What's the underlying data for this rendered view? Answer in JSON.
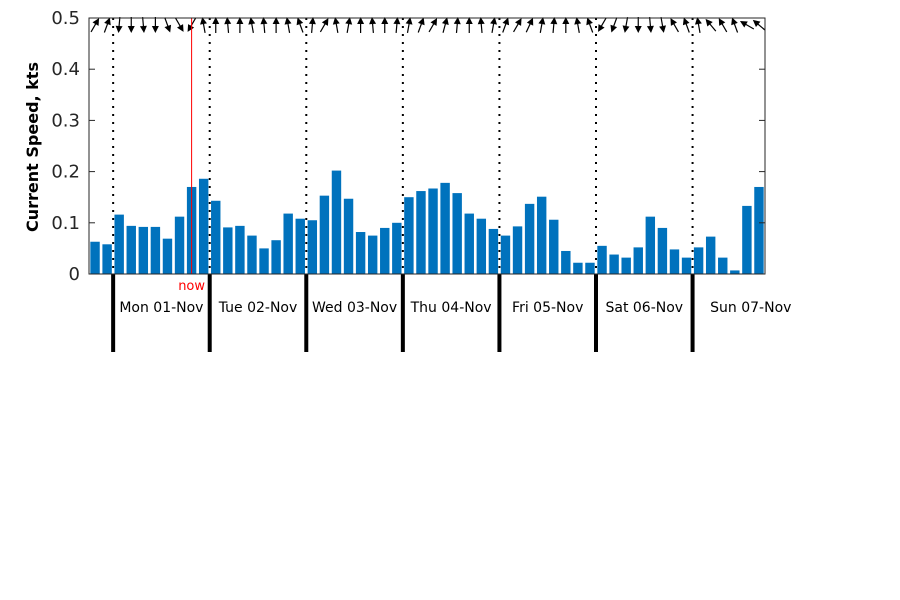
{
  "chart_data": {
    "type": "bar",
    "ylabel": "Current Speed, kts",
    "ylim": [
      0,
      0.5
    ],
    "yticks": [
      "0",
      "0.1",
      "0.2",
      "0.3",
      "0.4",
      "0.5"
    ],
    "grid": false,
    "bar_color": "#0072bd",
    "now_color": "#ff0000",
    "now_label": "now",
    "now_bar_index": 8.5,
    "day_labels": [
      "Mon 01-Nov",
      "Tue 02-Nov",
      "Wed 03-Nov",
      "Thu 04-Nov",
      "Fri 05-Nov",
      "Sat 06-Nov",
      "Sun 07-Nov"
    ],
    "day_start_bar_indices": [
      2,
      10,
      18,
      26,
      34,
      42,
      50
    ],
    "values": [
      0.063,
      0.058,
      0.116,
      0.094,
      0.092,
      0.092,
      0.069,
      0.112,
      0.17,
      0.186,
      0.143,
      0.091,
      0.094,
      0.075,
      0.05,
      0.066,
      0.118,
      0.108,
      0.105,
      0.153,
      0.202,
      0.147,
      0.082,
      0.075,
      0.09,
      0.1,
      0.15,
      0.162,
      0.167,
      0.178,
      0.158,
      0.118,
      0.108,
      0.088,
      0.075,
      0.093,
      0.137,
      0.151,
      0.106,
      0.045,
      0.022,
      0.022,
      0.055,
      0.038,
      0.032,
      0.052,
      0.112,
      0.09,
      0.048,
      0.032,
      0.052,
      0.073,
      0.032,
      0.007,
      0.133,
      0.17
    ],
    "direction_arrows_deg": [
      300,
      290,
      95,
      90,
      85,
      90,
      70,
      60,
      120,
      260,
      270,
      265,
      270,
      260,
      265,
      270,
      260,
      250,
      275,
      300,
      260,
      280,
      270,
      265,
      270,
      275,
      280,
      290,
      300,
      285,
      275,
      270,
      265,
      280,
      290,
      300,
      295,
      280,
      275,
      270,
      260,
      250,
      120,
      110,
      100,
      90,
      85,
      80,
      240,
      250,
      260,
      230,
      240,
      250,
      210,
      220
    ]
  }
}
